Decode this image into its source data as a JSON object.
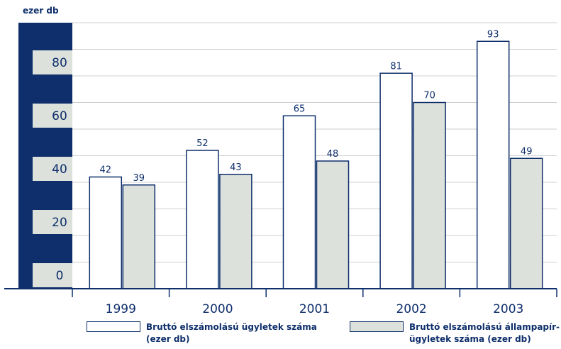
{
  "chart_data": {
    "type": "bar",
    "ylabel": "ezer db",
    "categories": [
      "1999",
      "2000",
      "2001",
      "2002",
      "2003"
    ],
    "series": [
      {
        "name": "Bruttó elszámolású ügyletek száma\n(ezer db)",
        "values": [
          42,
          52,
          65,
          81,
          93
        ]
      },
      {
        "name": "Bruttó elszámolású állampapír-\nügyletek száma (ezer db)",
        "values": [
          39,
          43,
          48,
          70,
          49
        ]
      }
    ],
    "yticks": [
      "0",
      "20",
      "40",
      "60",
      "80"
    ],
    "ylim": [
      0,
      100
    ],
    "grid": true,
    "legend_position": "bottom"
  },
  "colors": {
    "navy": "#0e2f6b",
    "series_1_fill": "#ffffff",
    "series_2_fill": "#dde1dc",
    "grid": "#cfcfcf"
  }
}
